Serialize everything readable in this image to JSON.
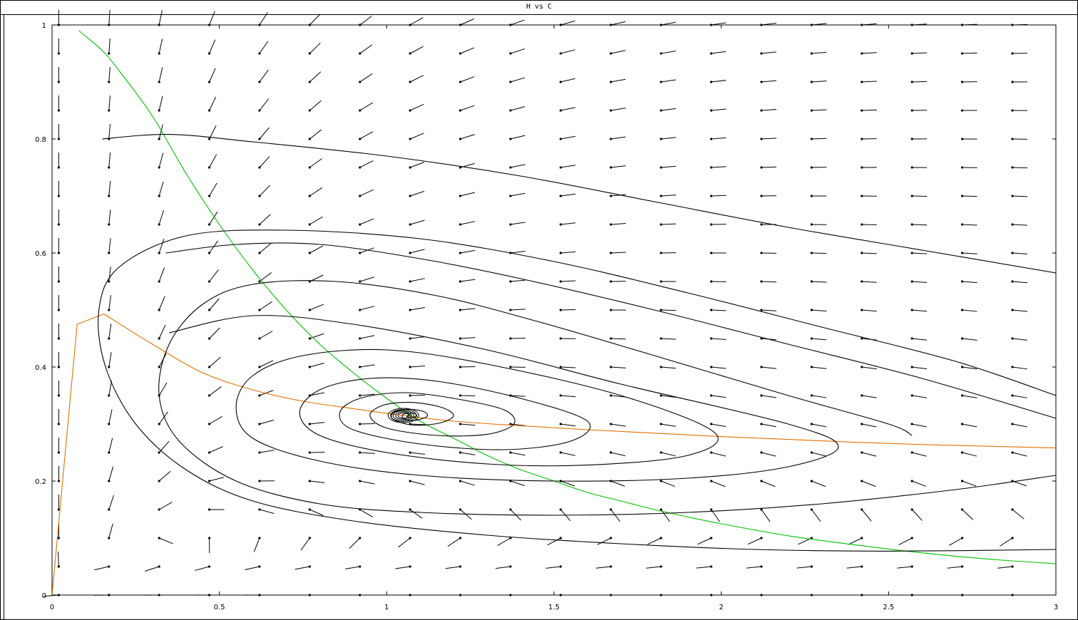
{
  "window": {
    "title": "H vs C"
  },
  "chart_data": {
    "type": "line",
    "title": "H vs C",
    "xlabel": "",
    "ylabel": "",
    "xlim": [
      0,
      3
    ],
    "ylim": [
      0,
      1
    ],
    "x_ticks": [
      "0",
      "0.5",
      "1",
      "1.5",
      "2",
      "2.5",
      "3"
    ],
    "y_ticks": [
      "0",
      "0.2",
      "0.4",
      "0.6",
      "0.8",
      "1"
    ],
    "grid": false,
    "legend": "none",
    "direction_field": {
      "description_values": "arrow at each grid point (C,H); dC = 0.15 * C*(1-C/5) - 2*C*H/(1+C), dH = 0.15*(H*(1-H/(0.3*C+0.01)))",
      "x_grid": [
        0.02,
        0.17,
        0.32,
        0.47,
        0.62,
        0.77,
        0.92,
        1.07,
        1.22,
        1.37,
        1.52,
        1.67,
        1.82,
        1.97,
        2.12,
        2.27,
        2.42,
        2.57,
        2.72,
        2.87,
        3.02
      ],
      "y_grid": [
        0.0,
        0.05,
        0.1,
        0.15,
        0.2,
        0.25,
        0.3,
        0.35,
        0.4,
        0.45,
        0.5,
        0.55,
        0.6,
        0.65,
        0.7,
        0.75,
        0.8,
        0.85,
        0.9,
        0.95,
        1.0
      ]
    },
    "series": [
      {
        "name": "",
        "color": "#00c000",
        "role": "nullcline",
        "points": [
          [
            0.08,
            0.99
          ],
          [
            0.15,
            0.955
          ],
          [
            0.2,
            0.92
          ],
          [
            0.3,
            0.84
          ],
          [
            0.4,
            0.74
          ],
          [
            0.5,
            0.65
          ],
          [
            0.6,
            0.57
          ],
          [
            0.7,
            0.5
          ],
          [
            0.8,
            0.44
          ],
          [
            0.9,
            0.39
          ],
          [
            1.0,
            0.345
          ],
          [
            1.1,
            0.305
          ],
          [
            1.2,
            0.275
          ],
          [
            1.3,
            0.245
          ],
          [
            1.4,
            0.22
          ],
          [
            1.5,
            0.2
          ],
          [
            1.6,
            0.18
          ],
          [
            1.7,
            0.165
          ],
          [
            1.8,
            0.15
          ],
          [
            1.9,
            0.137
          ],
          [
            2.0,
            0.125
          ],
          [
            2.2,
            0.104
          ],
          [
            2.4,
            0.088
          ],
          [
            2.6,
            0.074
          ],
          [
            2.8,
            0.063
          ],
          [
            3.0,
            0.055
          ]
        ]
      },
      {
        "name": "",
        "color": "#e07000",
        "role": "nullcline",
        "points": [
          [
            0.0,
            0.0
          ],
          [
            0.075,
            0.475
          ],
          [
            0.155,
            0.493
          ],
          [
            0.3,
            0.44
          ],
          [
            0.45,
            0.39
          ],
          [
            0.6,
            0.36
          ],
          [
            0.75,
            0.34
          ],
          [
            0.9,
            0.327
          ],
          [
            1.05,
            0.315
          ],
          [
            1.2,
            0.305
          ],
          [
            1.4,
            0.297
          ],
          [
            1.6,
            0.29
          ],
          [
            1.8,
            0.284
          ],
          [
            2.0,
            0.278
          ],
          [
            2.2,
            0.273
          ],
          [
            2.4,
            0.268
          ],
          [
            2.6,
            0.264
          ],
          [
            2.8,
            0.261
          ],
          [
            3.0,
            0.258
          ]
        ]
      },
      {
        "name": "",
        "color": "#000000",
        "role": "trajectory",
        "points": [
          [
            0.15,
            0.8
          ],
          [
            0.35,
            0.808
          ],
          [
            0.6,
            0.795
          ],
          [
            1.0,
            0.77
          ],
          [
            1.4,
            0.735
          ],
          [
            1.8,
            0.69
          ],
          [
            2.2,
            0.645
          ],
          [
            2.6,
            0.605
          ],
          [
            3.0,
            0.565
          ]
        ]
      },
      {
        "name": "",
        "color": "#000000",
        "role": "trajectory",
        "points": [
          [
            0.34,
            0.6
          ],
          [
            0.55,
            0.615
          ],
          [
            0.8,
            0.615
          ],
          [
            1.1,
            0.59
          ],
          [
            1.4,
            0.555
          ],
          [
            1.8,
            0.5
          ],
          [
            2.2,
            0.44
          ],
          [
            2.6,
            0.38
          ],
          [
            3.0,
            0.31
          ]
        ]
      },
      {
        "name": "",
        "color": "#000000",
        "role": "trajectory",
        "points": [
          [
            3.0,
            0.35
          ],
          [
            2.7,
            0.41
          ],
          [
            2.3,
            0.47
          ],
          [
            1.9,
            0.53
          ],
          [
            1.5,
            0.585
          ],
          [
            1.1,
            0.625
          ],
          [
            0.7,
            0.64
          ],
          [
            0.4,
            0.63
          ],
          [
            0.2,
            0.575
          ],
          [
            0.14,
            0.5
          ],
          [
            0.16,
            0.4
          ],
          [
            0.25,
            0.3
          ],
          [
            0.4,
            0.22
          ],
          [
            0.6,
            0.165
          ],
          [
            0.9,
            0.13
          ],
          [
            1.3,
            0.105
          ],
          [
            1.7,
            0.09
          ],
          [
            2.1,
            0.08
          ],
          [
            2.5,
            0.077
          ],
          [
            3.0,
            0.08
          ]
        ]
      },
      {
        "name": "",
        "color": "#000000",
        "role": "trajectory",
        "points": [
          [
            3.0,
            0.21
          ],
          [
            2.7,
            0.185
          ],
          [
            2.3,
            0.16
          ],
          [
            1.9,
            0.145
          ],
          [
            1.5,
            0.14
          ],
          [
            1.1,
            0.145
          ],
          [
            0.8,
            0.16
          ],
          [
            0.55,
            0.2
          ],
          [
            0.38,
            0.27
          ],
          [
            0.32,
            0.35
          ],
          [
            0.35,
            0.44
          ],
          [
            0.45,
            0.51
          ],
          [
            0.6,
            0.545
          ],
          [
            0.85,
            0.55
          ],
          [
            1.15,
            0.525
          ],
          [
            1.45,
            0.48
          ],
          [
            1.8,
            0.42
          ],
          [
            2.2,
            0.35
          ],
          [
            2.5,
            0.3
          ],
          [
            2.57,
            0.28
          ]
        ]
      },
      {
        "name": "",
        "color": "#000000",
        "role": "trajectory",
        "points": [
          [
            0.35,
            0.46
          ],
          [
            0.6,
            0.49
          ],
          [
            0.9,
            0.475
          ],
          [
            1.3,
            0.43
          ],
          [
            1.7,
            0.37
          ],
          [
            2.2,
            0.3
          ],
          [
            2.35,
            0.26
          ],
          [
            2.2,
            0.225
          ],
          [
            1.9,
            0.205
          ],
          [
            1.5,
            0.2
          ],
          [
            1.1,
            0.21
          ],
          [
            0.8,
            0.235
          ],
          [
            0.6,
            0.275
          ],
          [
            0.55,
            0.33
          ],
          [
            0.6,
            0.385
          ],
          [
            0.75,
            0.42
          ],
          [
            1.0,
            0.43
          ],
          [
            1.3,
            0.405
          ],
          [
            1.7,
            0.35
          ],
          [
            1.98,
            0.285
          ],
          [
            1.9,
            0.245
          ],
          [
            1.6,
            0.228
          ],
          [
            1.3,
            0.23
          ],
          [
            1.0,
            0.25
          ],
          [
            0.8,
            0.28
          ],
          [
            0.74,
            0.32
          ],
          [
            0.8,
            0.36
          ],
          [
            0.95,
            0.38
          ],
          [
            1.15,
            0.375
          ],
          [
            1.4,
            0.345
          ],
          [
            1.6,
            0.305
          ],
          [
            1.55,
            0.27
          ],
          [
            1.35,
            0.255
          ],
          [
            1.1,
            0.265
          ],
          [
            0.9,
            0.29
          ],
          [
            0.86,
            0.32
          ],
          [
            0.92,
            0.345
          ],
          [
            1.05,
            0.355
          ],
          [
            1.2,
            0.345
          ],
          [
            1.35,
            0.325
          ],
          [
            1.38,
            0.3
          ],
          [
            1.3,
            0.282
          ],
          [
            1.15,
            0.28
          ],
          [
            1.0,
            0.293
          ],
          [
            0.95,
            0.315
          ],
          [
            0.99,
            0.333
          ],
          [
            1.07,
            0.338
          ],
          [
            1.16,
            0.33
          ],
          [
            1.2,
            0.315
          ],
          [
            1.16,
            0.302
          ],
          [
            1.08,
            0.298
          ],
          [
            1.02,
            0.308
          ],
          [
            1.02,
            0.32
          ],
          [
            1.06,
            0.326
          ],
          [
            1.11,
            0.322
          ],
          [
            1.12,
            0.313
          ],
          [
            1.08,
            0.306
          ],
          [
            1.05,
            0.31
          ],
          [
            1.05,
            0.317
          ],
          [
            1.08,
            0.319
          ],
          [
            1.09,
            0.314
          ],
          [
            1.07,
            0.311
          ],
          [
            1.06,
            0.314
          ],
          [
            1.07,
            0.316
          ]
        ]
      }
    ],
    "fixed_point": [
      1.05,
      0.315
    ]
  }
}
